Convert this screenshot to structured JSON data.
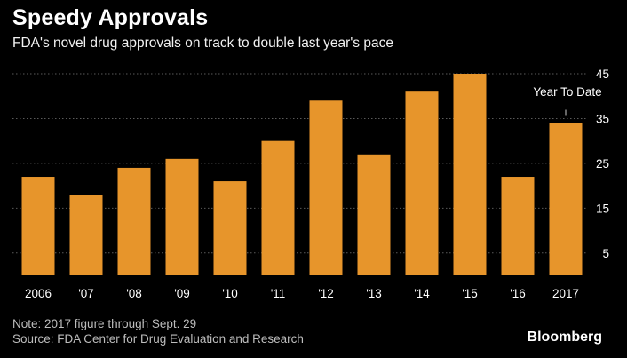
{
  "header": {
    "title": "Speedy Approvals",
    "subtitle": "FDA's novel drug approvals on track to double last year's pace"
  },
  "footer": {
    "note": "Note: 2017 figure through Sept. 29",
    "source": "Source: FDA Center for Drug Evaluation and Research",
    "brand": "Bloomberg"
  },
  "colors": {
    "background": "#000000",
    "bar": "#e7952b",
    "grid": "#5a5a5a",
    "text": "#ffffff"
  },
  "chart_data": {
    "type": "bar",
    "categories": [
      "2006",
      "'07",
      "'08",
      "'09",
      "'10",
      "'11",
      "'12",
      "'13",
      "'14",
      "'15",
      "'16",
      "2017"
    ],
    "values": [
      22,
      18,
      24,
      26,
      21,
      30,
      39,
      27,
      41,
      45,
      22,
      34
    ],
    "ylim": [
      0,
      45
    ],
    "yticks": [
      5,
      15,
      25,
      35,
      45
    ],
    "ytick_side": "right",
    "grid": true,
    "annotations": [
      {
        "category": "2017",
        "text": "Year To Date"
      }
    ]
  }
}
